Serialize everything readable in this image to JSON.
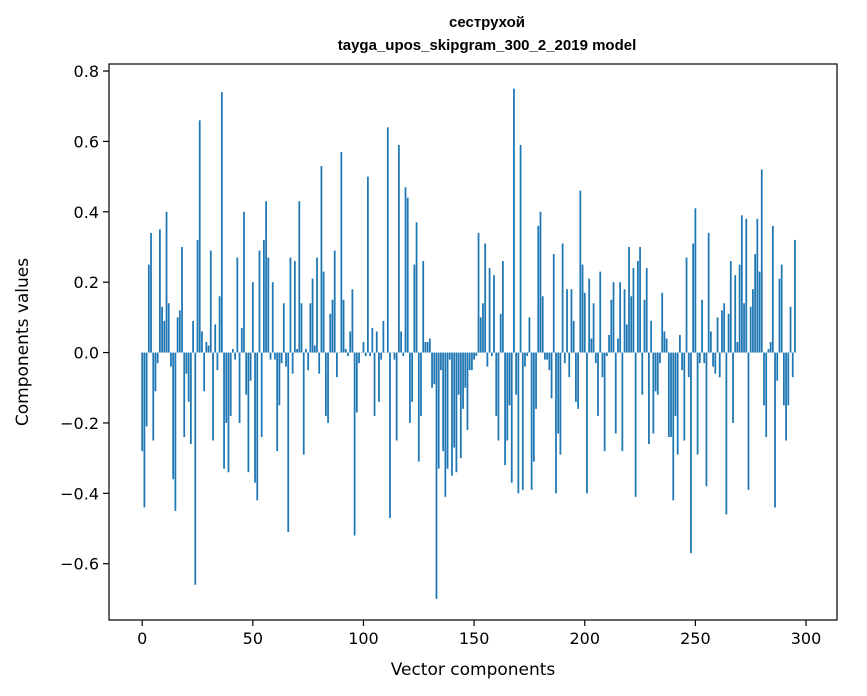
{
  "chart_data": {
    "type": "bar",
    "title": [
      "сеструхой",
      "tayga_upos_skipgram_300_2_2019 model"
    ],
    "xlabel": "Vector components",
    "ylabel": "Components values",
    "xlim": [
      -15,
      314
    ],
    "ylim": [
      -0.76,
      0.82
    ],
    "xticks": [
      0,
      50,
      100,
      150,
      200,
      250,
      300
    ],
    "yticks": [
      -0.6,
      -0.4,
      -0.2,
      0.0,
      0.2,
      0.4,
      0.6,
      0.8
    ],
    "xtick_labels": [
      "0",
      "50",
      "100",
      "150",
      "200",
      "250",
      "300"
    ],
    "ytick_labels": [
      "−0.6",
      "−0.4",
      "−0.2",
      "0.0",
      "0.2",
      "0.4",
      "0.6",
      "0.8"
    ],
    "grid": false,
    "bar_color": "#1f77b4",
    "values": [
      -0.28,
      -0.44,
      -0.21,
      0.25,
      0.34,
      -0.25,
      -0.11,
      -0.03,
      0.35,
      0.13,
      0.09,
      0.4,
      0.14,
      -0.04,
      -0.36,
      -0.45,
      0.1,
      0.12,
      0.3,
      -0.24,
      -0.06,
      -0.14,
      -0.26,
      0.09,
      -0.66,
      0.32,
      0.66,
      0.06,
      -0.11,
      0.03,
      0.02,
      0.29,
      -0.25,
      0.08,
      -0.05,
      0.16,
      0.74,
      -0.33,
      -0.2,
      -0.34,
      -0.18,
      0.01,
      -0.02,
      0.27,
      -0.2,
      0.07,
      0.4,
      -0.12,
      -0.34,
      -0.08,
      0.2,
      -0.37,
      -0.42,
      0.29,
      -0.24,
      0.32,
      0.43,
      0.27,
      -0.02,
      0.2,
      -0.02,
      -0.28,
      -0.15,
      -0.03,
      0.14,
      -0.04,
      -0.51,
      0.27,
      -0.06,
      0.26,
      0.01,
      0.43,
      0.14,
      -0.29,
      0.01,
      -0.05,
      0.14,
      0.21,
      0.02,
      0.27,
      -0.06,
      0.53,
      0.23,
      -0.18,
      -0.2,
      0.11,
      0.15,
      0.29,
      -0.07,
      0.0,
      0.57,
      0.15,
      0.01,
      -0.01,
      0.06,
      0.18,
      -0.52,
      -0.17,
      -0.03,
      0.0,
      0.03,
      -0.01,
      0.5,
      -0.01,
      0.07,
      -0.18,
      0.06,
      -0.14,
      -0.02,
      0.09,
      0.0,
      0.64,
      -0.47,
      0.0,
      -0.02,
      -0.25,
      0.59,
      0.06,
      -0.01,
      0.47,
      0.44,
      -0.2,
      -0.14,
      0.25,
      0.37,
      -0.31,
      -0.18,
      0.26,
      0.03,
      0.03,
      0.04,
      -0.1,
      -0.09,
      -0.7,
      -0.33,
      -0.05,
      -0.28,
      -0.41,
      -0.33,
      -0.02,
      -0.35,
      -0.27,
      -0.34,
      -0.12,
      -0.3,
      -0.16,
      -0.1,
      -0.22,
      -0.05,
      -0.05,
      -0.02,
      -0.01,
      0.34,
      0.1,
      0.14,
      0.31,
      -0.04,
      0.24,
      -0.01,
      0.22,
      -0.18,
      -0.25,
      0.11,
      0.26,
      -0.32,
      -0.25,
      -0.15,
      -0.37,
      0.75,
      -0.12,
      -0.4,
      0.59,
      -0.39,
      -0.04,
      -0.01,
      0.1,
      -0.39,
      -0.31,
      -0.16,
      0.36,
      0.4,
      0.16,
      -0.02,
      -0.02,
      -0.05,
      -0.13,
      0.28,
      -0.4,
      -0.23,
      -0.29,
      0.31,
      -0.03,
      0.18,
      -0.07,
      0.18,
      0.09,
      -0.14,
      -0.16,
      0.46,
      0.25,
      0.17,
      -0.4,
      0.21,
      0.04,
      0.14,
      -0.03,
      -0.18,
      0.23,
      -0.07,
      -0.28,
      -0.01,
      0.05,
      0.15,
      0.2,
      -0.23,
      0.04,
      0.2,
      -0.28,
      0.18,
      0.08,
      0.3,
      0.16,
      0.24,
      -0.41,
      0.26,
      0.3,
      -0.12,
      0.15,
      0.24,
      -0.26,
      0.09,
      -0.23,
      -0.11,
      -0.12,
      -0.03,
      0.17,
      0.06,
      0.04,
      -0.24,
      -0.24,
      -0.42,
      -0.18,
      -0.29,
      0.05,
      -0.05,
      -0.25,
      0.27,
      -0.07,
      -0.57,
      0.31,
      0.41,
      -0.29,
      -0.03,
      0.15,
      -0.03,
      -0.38,
      0.34,
      0.06,
      -0.04,
      -0.06,
      0.1,
      -0.07,
      0.12,
      0.14,
      -0.46,
      0.11,
      0.26,
      -0.2,
      0.22,
      0.03,
      0.25,
      0.39,
      0.14,
      0.38,
      -0.39,
      0.13,
      0.18,
      0.28,
      0.38,
      0.23,
      0.52,
      -0.15,
      -0.24,
      0.01,
      0.03,
      0.36,
      -0.44,
      -0.08,
      0.21,
      0.25,
      -0.15,
      -0.25,
      -0.15,
      0.13,
      -0.07,
      0.32
    ]
  }
}
